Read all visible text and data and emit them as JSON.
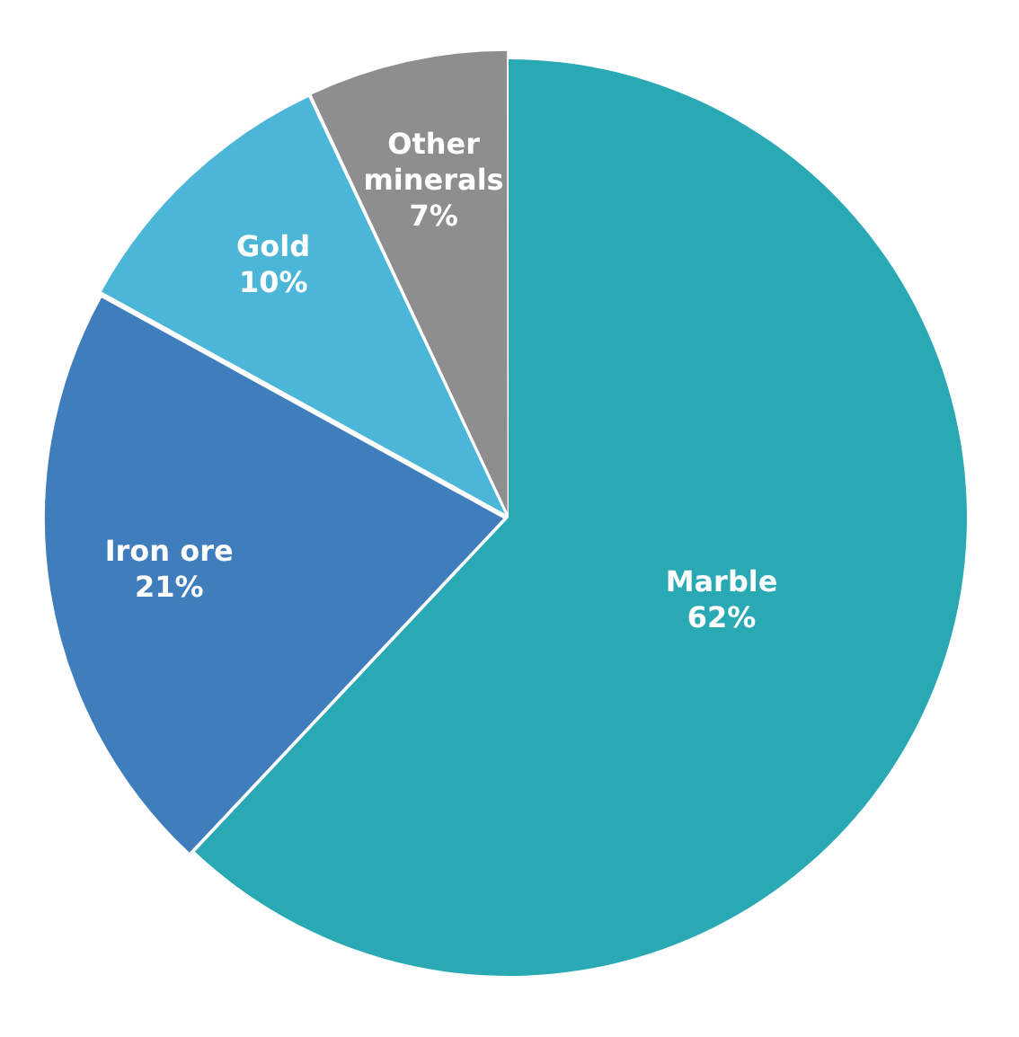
{
  "chart_data": {
    "type": "pie",
    "categories": [
      "Marble",
      "Iron ore",
      "Gold",
      "Other minerals"
    ],
    "values": [
      62,
      21,
      10,
      7
    ],
    "value_labels": [
      "62%",
      "21%",
      "10%",
      "7%"
    ],
    "colors": [
      "#28a9b4",
      "#3f7dbd",
      "#4cb6d8",
      "#8e8e8e"
    ],
    "legend": false
  }
}
